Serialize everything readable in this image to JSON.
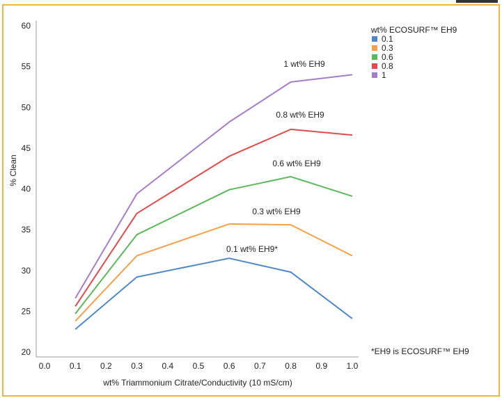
{
  "chart_data": {
    "type": "line",
    "title": "",
    "xlabel": "wt% Triammonium Citrate/Conductivity (10 mS/cm)",
    "ylabel": "% Clean",
    "xlim": [
      0.0,
      1.0
    ],
    "ylim": [
      20,
      60
    ],
    "x_ticks": [
      "0.0",
      "0.1",
      "0.2",
      "0.3",
      "0.4",
      "0.5",
      "0.6",
      "0.7",
      "0.8",
      "0.9",
      "1.0"
    ],
    "y_ticks": [
      "20",
      "25",
      "30",
      "35",
      "40",
      "45",
      "50",
      "55",
      "60"
    ],
    "x": [
      0.1,
      0.3,
      0.6,
      0.8,
      1.0
    ],
    "grid": false,
    "legend": {
      "title": "wt% ECOSURF™ EH9",
      "placement": "top-right"
    },
    "series": [
      {
        "name": "0.1",
        "color": "#4f88c6",
        "values": [
          22.8,
          29.2,
          31.5,
          29.8,
          24.1
        ],
        "annotation": "0.1 wt% EH9*"
      },
      {
        "name": "0.3",
        "color": "#f5a04a",
        "values": [
          23.8,
          31.8,
          35.7,
          35.6,
          31.8
        ],
        "annotation": "0.3 wt% EH9"
      },
      {
        "name": "0.6",
        "color": "#5cb85c",
        "values": [
          24.7,
          34.4,
          39.9,
          41.5,
          39.1
        ],
        "annotation": "0.6 wt% EH9"
      },
      {
        "name": "0.8",
        "color": "#e04b4b",
        "values": [
          25.6,
          37.0,
          44.0,
          47.3,
          46.6
        ],
        "annotation": "0.8 wt% EH9"
      },
      {
        "name": "1",
        "color": "#a67dc8",
        "values": [
          26.6,
          39.4,
          48.2,
          53.1,
          54.0
        ],
        "annotation": "1 wt% EH9"
      }
    ],
    "footnote": "*EH9 is ECOSURF™ EH9"
  }
}
